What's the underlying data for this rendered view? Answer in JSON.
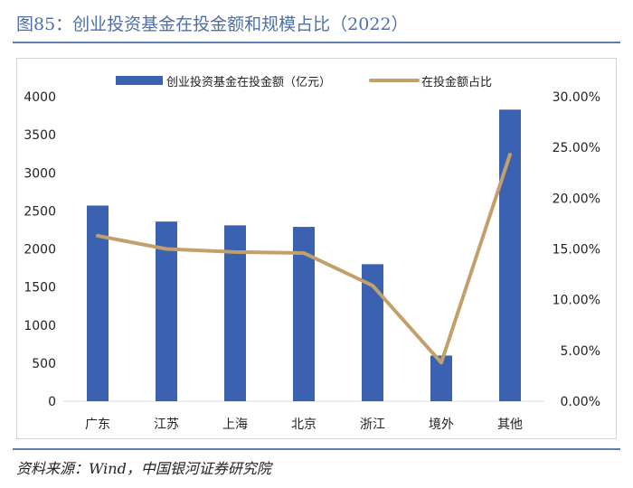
{
  "header": {
    "title": "图85：创业投资基金在投金额和规模占比（2022）"
  },
  "footer": {
    "source": "资料来源：Wind，中国银河证券研究院"
  },
  "colors": {
    "bar": "#3b62b0",
    "line": "#c1a06c",
    "title": "#4f6fa8",
    "rule": "#5d7db4"
  },
  "chart_data": {
    "type": "bar",
    "title": "",
    "categories": [
      "广东",
      "江苏",
      "上海",
      "北京",
      "浙江",
      "境外",
      "其他"
    ],
    "series": [
      {
        "name": "创业投资基金在投金额（亿元）",
        "type": "bar",
        "axis": "left",
        "values": [
          2570,
          2360,
          2310,
          2290,
          1800,
          600,
          3830
        ]
      },
      {
        "name": "在投金额占比",
        "type": "line",
        "axis": "right",
        "values": [
          0.163,
          0.15,
          0.147,
          0.146,
          0.114,
          0.038,
          0.243
        ]
      }
    ],
    "y_left": {
      "min": 0,
      "max": 4000,
      "ticks": [
        0,
        500,
        1000,
        1500,
        2000,
        2500,
        3000,
        3500,
        4000
      ],
      "tick_labels": [
        "0",
        "500",
        "1000",
        "1500",
        "2000",
        "2500",
        "3000",
        "3500",
        "4000"
      ]
    },
    "y_right": {
      "min": 0,
      "max": 0.3,
      "ticks": [
        0,
        0.05,
        0.1,
        0.15,
        0.2,
        0.25,
        0.3
      ],
      "tick_labels": [
        "0.00%",
        "5.00%",
        "10.00%",
        "15.00%",
        "20.00%",
        "25.00%",
        "30.00%"
      ]
    },
    "legend": {
      "position": "top",
      "items": [
        "创业投资基金在投金额（亿元）",
        "在投金额占比"
      ]
    },
    "grid": false
  }
}
